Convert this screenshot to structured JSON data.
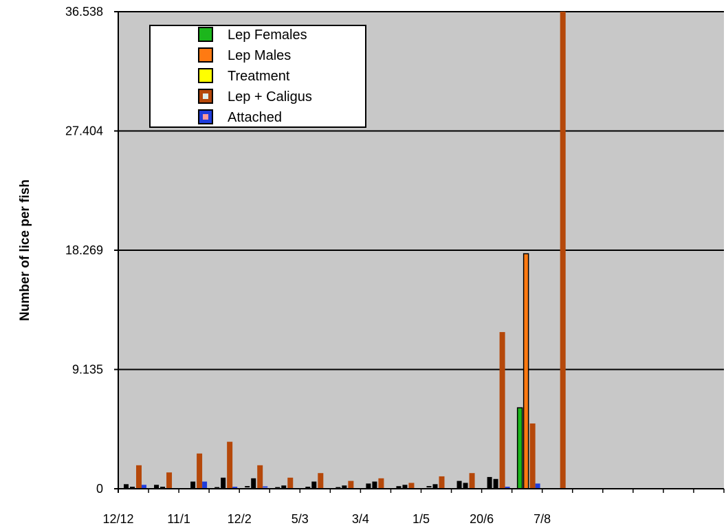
{
  "chart_data": {
    "type": "bar",
    "title": "",
    "xlabel": "",
    "ylabel": "Number of lice per fish",
    "ylim": [
      0,
      36.538
    ],
    "yticks": [
      "0",
      "9.135",
      "18.269",
      "27.404",
      "36.538"
    ],
    "ytick_values": [
      0,
      9.135,
      18.269,
      27.404,
      36.538
    ],
    "grid": true,
    "legend_position": "top-left",
    "x_date_labels": [
      "12/12",
      "11/1",
      "12/2",
      "5/3",
      "3/4",
      "1/5",
      "20/6",
      "7/8"
    ],
    "num_slots": 20,
    "series": [
      {
        "name": "Lep Females",
        "color": "#1cb61c",
        "values": [
          0.35,
          0.3,
          0,
          0.02,
          0.1,
          0.02,
          0.05,
          0.02,
          0.4,
          0.2,
          0.1,
          0.6,
          0.9,
          6.2,
          null,
          null,
          null,
          null,
          null,
          null
        ]
      },
      {
        "name": "Lep Males",
        "color": "#ff7a12",
        "values": [
          0.05,
          0.05,
          0.55,
          0.85,
          0.8,
          0.25,
          0.55,
          0.25,
          0.55,
          0.3,
          0.35,
          0.45,
          0.75,
          18.0,
          null,
          null,
          null,
          null,
          null,
          null
        ]
      },
      {
        "name": "Treatment",
        "color": "#ffff00",
        "values": [
          0,
          0,
          0,
          0,
          0,
          0,
          0,
          0,
          0,
          0,
          0,
          0,
          0,
          0,
          null,
          null,
          null,
          null,
          null,
          null
        ]
      },
      {
        "name": "Lep + Caligus",
        "color": "#b5480a",
        "values": [
          1.8,
          1.25,
          2.7,
          3.6,
          1.8,
          0.85,
          1.2,
          0.6,
          0.8,
          0.45,
          0.95,
          1.2,
          12.0,
          5.0,
          36.538,
          null,
          null,
          null,
          null,
          null
        ]
      },
      {
        "name": "Attached",
        "color": "#1f3ddc",
        "values": [
          0.3,
          0,
          0.55,
          0.05,
          0.08,
          0,
          0,
          0,
          0,
          0,
          0,
          0,
          0.05,
          0.4,
          null,
          null,
          null,
          null,
          null,
          null
        ]
      }
    ],
    "legend_markers": [
      {
        "name": "Lep Females",
        "fill": "#1cb61c",
        "inner": null
      },
      {
        "name": "Lep Males",
        "fill": "#ff7a12",
        "inner": null
      },
      {
        "name": "Treatment",
        "fill": "#ffff00",
        "inner": null
      },
      {
        "name": "Lep + Caligus",
        "fill": "#b5480a",
        "inner": "#ddeeee"
      },
      {
        "name": "Attached",
        "fill": "#1f3ddc",
        "inner": "#ff9999"
      }
    ],
    "plot_background": "#c8c8c8"
  }
}
